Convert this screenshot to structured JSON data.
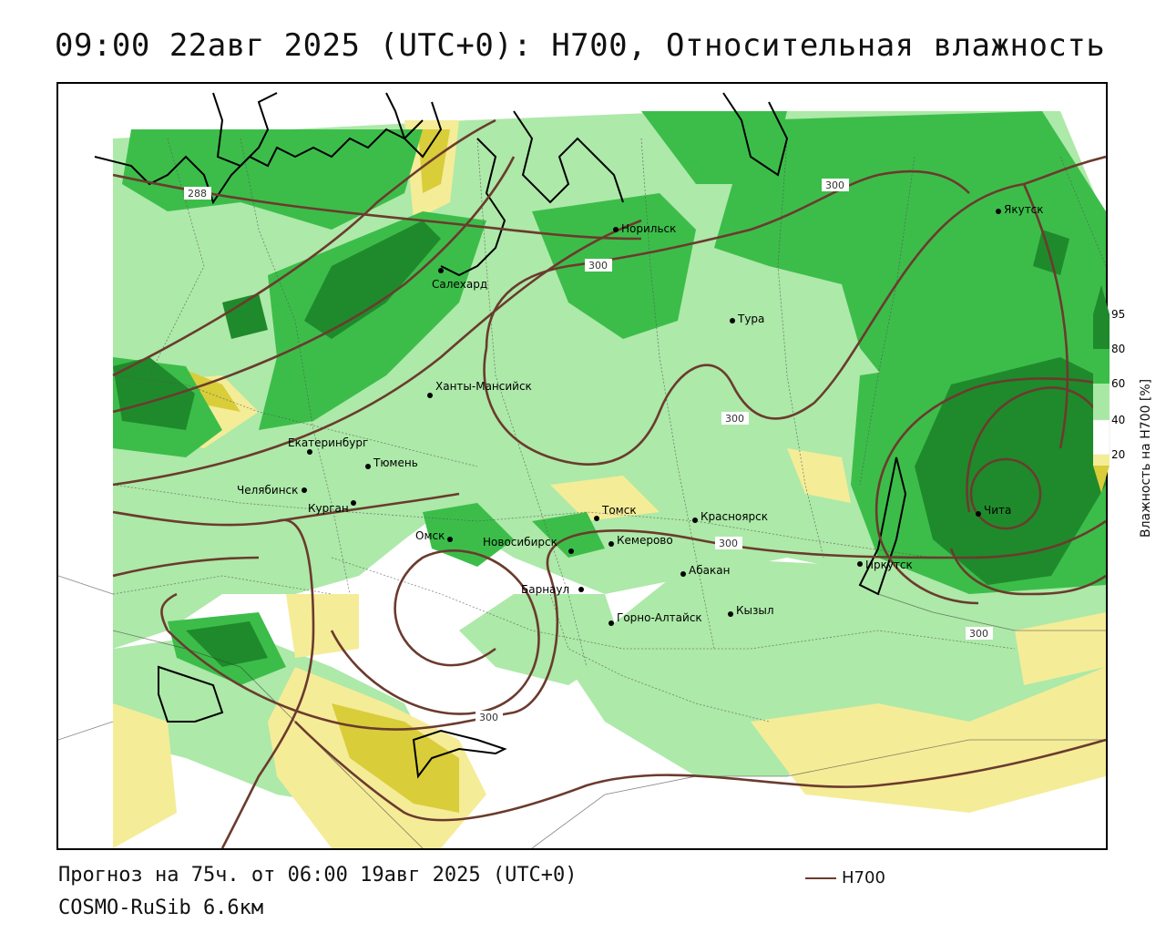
{
  "header": {
    "title": "09:00 22авг 2025 (UTC+0): H700, Относительная влажность"
  },
  "footer": {
    "forecast": "Прогноз на 75ч. от 06:00 19авг 2025 (UTC+0)",
    "model": "COSMO-RuSib 6.6км",
    "legend_line_label": "H700"
  },
  "colorbar": {
    "title": "Влажность на H700 [%]",
    "ticks": [
      "95",
      "80",
      "60",
      "40",
      "20"
    ],
    "colors": {
      "95": "#1f8a2b",
      "80": "#3cbd4a",
      "60": "#a9e8a4",
      "40": "#ffffff",
      "20": "#f5ec98",
      "low": "#d9cd3a"
    }
  },
  "contours": {
    "color": "#6b3b2e",
    "labels": [
      "288",
      "300",
      "300",
      "300",
      "300",
      "300"
    ]
  },
  "cities": [
    {
      "name": "Норильск"
    },
    {
      "name": "Якутск"
    },
    {
      "name": "Салехард"
    },
    {
      "name": "Тура"
    },
    {
      "name": "Ханты-Мансийск"
    },
    {
      "name": "Екатеринбург"
    },
    {
      "name": "Тюмень"
    },
    {
      "name": "Челябинск"
    },
    {
      "name": "Курган"
    },
    {
      "name": "Омск"
    },
    {
      "name": "Новосибирск"
    },
    {
      "name": "Томск"
    },
    {
      "name": "Кемерово"
    },
    {
      "name": "Красноярск"
    },
    {
      "name": "Барнаул"
    },
    {
      "name": "Абакан"
    },
    {
      "name": "Иркутск"
    },
    {
      "name": "Чита"
    },
    {
      "name": "Кызыл"
    },
    {
      "name": "Горно-Алтайск"
    }
  ]
}
